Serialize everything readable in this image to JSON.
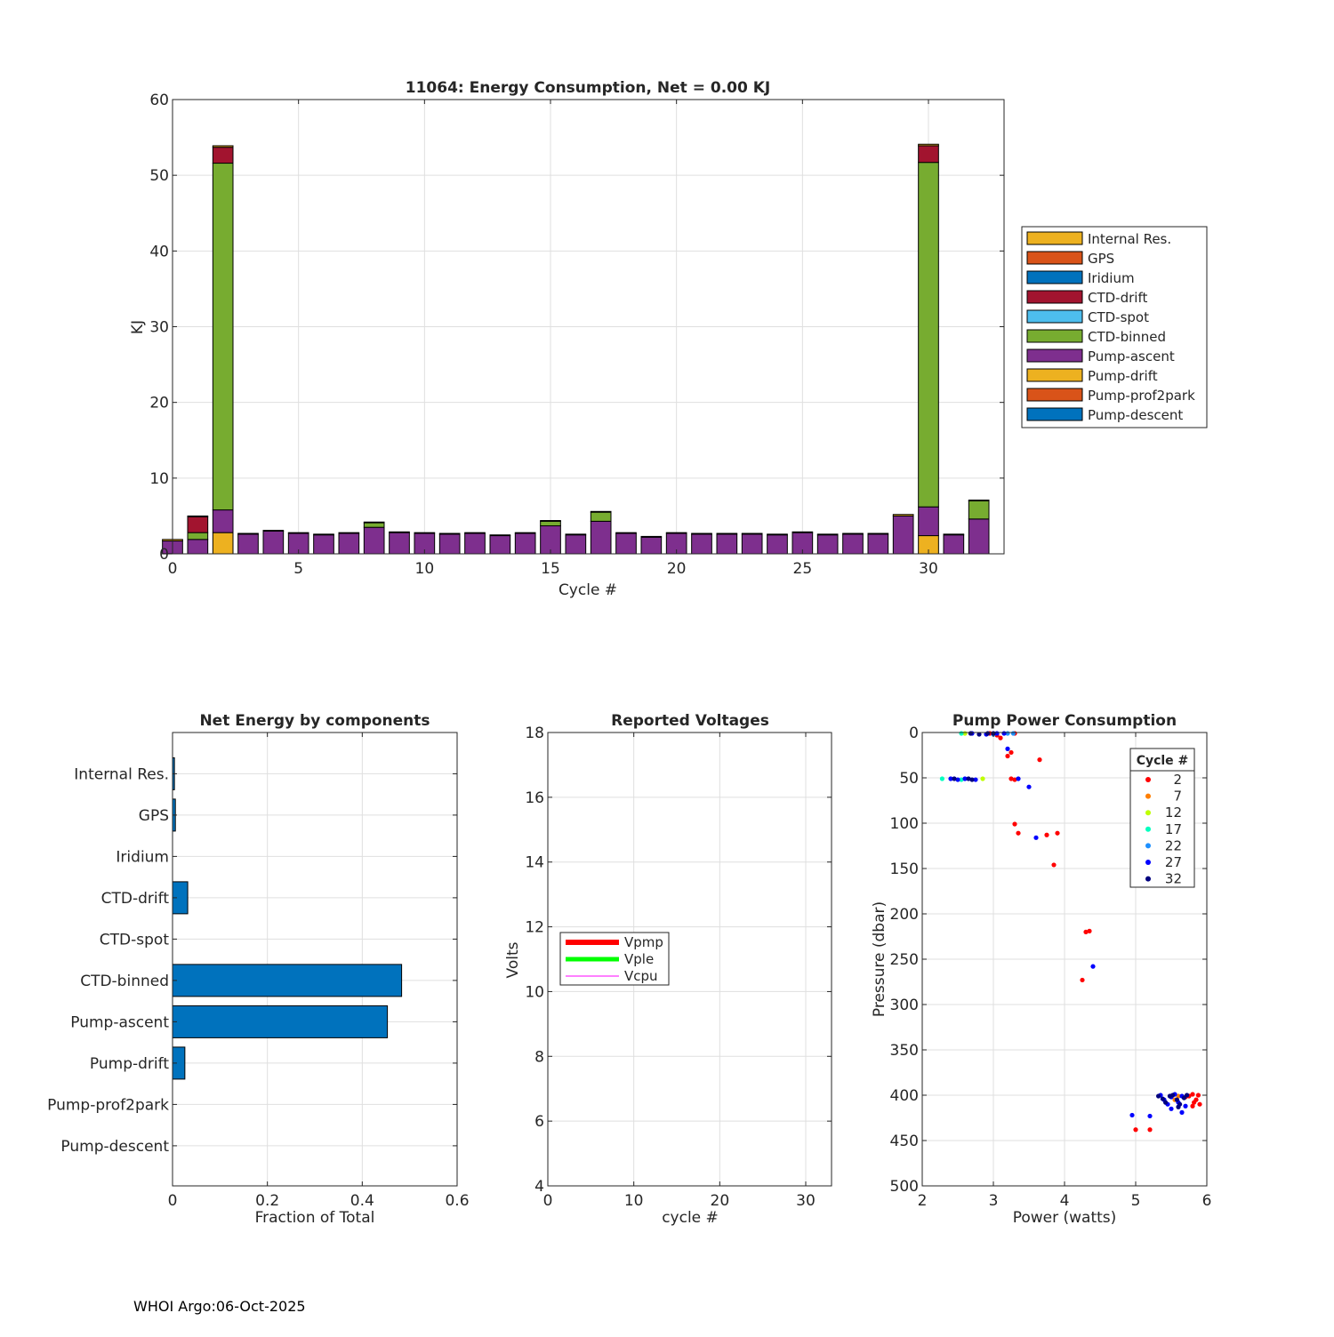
{
  "footer": "WHOI Argo:06-Oct-2025",
  "colors": {
    "internal_res": "#EDB120",
    "gps": "#D95319",
    "iridium": "#0072BD",
    "ctd_drift": "#A2142F",
    "ctd_spot": "#4DBEEE",
    "ctd_binned": "#77AC30",
    "pump_ascent": "#7E2F8E",
    "pump_drift": "#EDB120",
    "pump_prof2park": "#D95319",
    "pump_descent": "#0072BD",
    "bar_blue": "#0072BD"
  },
  "chart_data": [
    {
      "id": "energy",
      "type": "bar",
      "stacked": true,
      "title": "11064: Energy Consumption,  Net =   0.00 KJ",
      "xlabel": "Cycle #",
      "ylabel": "KJ",
      "xlim": [
        0,
        33
      ],
      "ylim": [
        0,
        60
      ],
      "xticks": [
        0,
        5,
        10,
        15,
        20,
        25,
        30
      ],
      "yticks": [
        0,
        10,
        20,
        30,
        40,
        50,
        60
      ],
      "grid": true,
      "legend_position": "outside-right",
      "legend": [
        "Internal Res.",
        "GPS",
        "Iridium",
        "CTD-drift",
        "CTD-spot",
        "CTD-binned",
        "Pump-ascent",
        "Pump-drift",
        "Pump-prof2park",
        "Pump-descent"
      ],
      "legend_colors": [
        "#EDB120",
        "#D95319",
        "#0072BD",
        "#A2142F",
        "#4DBEEE",
        "#77AC30",
        "#7E2F8E",
        "#EDB120",
        "#D95319",
        "#0072BD"
      ],
      "stack_order": [
        "Pump-drift",
        "Pump-ascent",
        "CTD-binned",
        "CTD-drift",
        "Internal Res."
      ],
      "stack_colors": [
        "#EDB120",
        "#7E2F8E",
        "#77AC30",
        "#A2142F",
        "#EDB120"
      ],
      "bars": [
        {
          "cycle": 0,
          "values": [
            0,
            1.7,
            0,
            0,
            0.2
          ]
        },
        {
          "cycle": 1,
          "values": [
            0,
            1.9,
            0.9,
            2.1,
            0.1
          ]
        },
        {
          "cycle": 2,
          "values": [
            2.8,
            3.0,
            45.8,
            2.1,
            0.2
          ]
        },
        {
          "cycle": 3,
          "values": [
            0,
            2.6,
            0,
            0,
            0.1
          ]
        },
        {
          "cycle": 4,
          "values": [
            0,
            3.0,
            0,
            0,
            0.1
          ]
        },
        {
          "cycle": 5,
          "values": [
            0,
            2.7,
            0,
            0,
            0.1
          ]
        },
        {
          "cycle": 6,
          "values": [
            0,
            2.5,
            0,
            0,
            0.1
          ]
        },
        {
          "cycle": 7,
          "values": [
            0,
            2.7,
            0,
            0,
            0.1
          ]
        },
        {
          "cycle": 8,
          "values": [
            0,
            3.5,
            0.6,
            0,
            0.1
          ]
        },
        {
          "cycle": 9,
          "values": [
            0,
            2.8,
            0,
            0,
            0.1
          ]
        },
        {
          "cycle": 10,
          "values": [
            0,
            2.7,
            0,
            0,
            0.1
          ]
        },
        {
          "cycle": 11,
          "values": [
            0,
            2.6,
            0,
            0,
            0.1
          ]
        },
        {
          "cycle": 12,
          "values": [
            0,
            2.7,
            0,
            0,
            0.1
          ]
        },
        {
          "cycle": 13,
          "values": [
            0,
            2.4,
            0,
            0,
            0.1
          ]
        },
        {
          "cycle": 14,
          "values": [
            0,
            2.7,
            0,
            0,
            0.1
          ]
        },
        {
          "cycle": 15,
          "values": [
            0,
            3.7,
            0.6,
            0,
            0.1
          ]
        },
        {
          "cycle": 16,
          "values": [
            0,
            2.5,
            0,
            0,
            0.1
          ]
        },
        {
          "cycle": 17,
          "values": [
            0,
            4.3,
            1.2,
            0,
            0.1
          ]
        },
        {
          "cycle": 18,
          "values": [
            0,
            2.7,
            0,
            0,
            0.1
          ]
        },
        {
          "cycle": 19,
          "values": [
            0,
            2.2,
            0,
            0,
            0.1
          ]
        },
        {
          "cycle": 20,
          "values": [
            0,
            2.7,
            0,
            0,
            0.1
          ]
        },
        {
          "cycle": 21,
          "values": [
            0,
            2.6,
            0,
            0,
            0.1
          ]
        },
        {
          "cycle": 22,
          "values": [
            0,
            2.6,
            0,
            0,
            0.1
          ]
        },
        {
          "cycle": 23,
          "values": [
            0,
            2.6,
            0,
            0,
            0.1
          ]
        },
        {
          "cycle": 24,
          "values": [
            0,
            2.5,
            0,
            0,
            0.1
          ]
        },
        {
          "cycle": 25,
          "values": [
            0,
            2.8,
            0,
            0,
            0.1
          ]
        },
        {
          "cycle": 26,
          "values": [
            0,
            2.5,
            0,
            0,
            0.1
          ]
        },
        {
          "cycle": 27,
          "values": [
            0,
            2.6,
            0,
            0,
            0.1
          ]
        },
        {
          "cycle": 28,
          "values": [
            0,
            2.6,
            0,
            0,
            0.1
          ]
        },
        {
          "cycle": 29,
          "values": [
            0,
            5.0,
            0,
            0,
            0.2
          ]
        },
        {
          "cycle": 30,
          "values": [
            2.4,
            3.8,
            45.5,
            2.2,
            0.2
          ]
        },
        {
          "cycle": 31,
          "values": [
            0,
            2.5,
            0,
            0,
            0.1
          ]
        },
        {
          "cycle": 32,
          "values": [
            0,
            4.6,
            2.4,
            0,
            0.1
          ]
        }
      ]
    },
    {
      "id": "components",
      "type": "bar",
      "orientation": "horizontal",
      "title": "Net Energy by components",
      "xlabel": "Fraction of Total",
      "ylabel": "",
      "xlim": [
        0,
        0.6
      ],
      "xticks": [
        0,
        0.2,
        0.4,
        0.6
      ],
      "xtick_labels": [
        "0",
        "0.2",
        "0.4",
        "0.6"
      ],
      "grid": true,
      "categories": [
        "Internal Res.",
        "GPS",
        "Iridium",
        "CTD-drift",
        "CTD-spot",
        "CTD-binned",
        "Pump-ascent",
        "Pump-drift",
        "Pump-prof2park",
        "Pump-descent"
      ],
      "values": [
        0.004,
        0.006,
        0,
        0.032,
        0,
        0.483,
        0.453,
        0.026,
        0,
        0
      ]
    },
    {
      "id": "voltages",
      "type": "line",
      "title": "Reported Voltages",
      "xlabel": "cycle #",
      "ylabel": "Volts",
      "xlim": [
        0,
        33
      ],
      "ylim": [
        4,
        18
      ],
      "xticks": [
        0,
        10,
        20,
        30
      ],
      "yticks": [
        4,
        6,
        8,
        10,
        12,
        14,
        16,
        18
      ],
      "grid": true,
      "legend_position": "left-middle",
      "series": [
        {
          "name": "Vpmp",
          "color": "#FF0000",
          "values": []
        },
        {
          "name": "Vple",
          "color": "#00FF00",
          "values": []
        },
        {
          "name": "Vcpu",
          "color": "#FF00FF",
          "values": []
        }
      ]
    },
    {
      "id": "pump",
      "type": "scatter",
      "title": "Pump Power Consumption",
      "xlabel": "Power (watts)",
      "ylabel": "Pressure (dbar)",
      "xlim": [
        2,
        6
      ],
      "ylim": [
        0,
        500
      ],
      "y_reversed": true,
      "xticks": [
        2,
        3,
        4,
        5,
        6
      ],
      "yticks": [
        0,
        50,
        100,
        150,
        200,
        250,
        300,
        350,
        400,
        450,
        500
      ],
      "grid": true,
      "legend_title": "Cycle #",
      "legend_position": "top-right",
      "legend": [
        "2",
        "7",
        "12",
        "17",
        "22",
        "27",
        "32"
      ],
      "legend_colors": [
        "#FF0000",
        "#FF7F00",
        "#BFFF00",
        "#00FFBF",
        "#1E90FF",
        "#0000FF",
        "#00007F"
      ],
      "series": [
        {
          "name": "2",
          "color": "#FF0000",
          "points": [
            [
              2.95,
              1
            ],
            [
              3.05,
              3
            ],
            [
              3.3,
              1
            ],
            [
              3.1,
              6
            ],
            [
              3.25,
              22
            ],
            [
              3.2,
              26
            ],
            [
              3.65,
              30
            ],
            [
              3.25,
              51
            ],
            [
              3.3,
              52
            ],
            [
              3.3,
              101
            ],
            [
              3.35,
              111
            ],
            [
              3.75,
              113
            ],
            [
              3.9,
              111
            ],
            [
              3.85,
              146
            ],
            [
              4.3,
              220
            ],
            [
              4.35,
              219
            ],
            [
              4.25,
              273
            ],
            [
              5.75,
              401
            ],
            [
              5.8,
              399
            ],
            [
              5.85,
              405
            ],
            [
              5.9,
              410
            ],
            [
              5.8,
              412
            ],
            [
              5.7,
              402
            ],
            [
              5.88,
              400
            ],
            [
              5.82,
              408
            ],
            [
              5.0,
              438
            ],
            [
              5.2,
              438
            ]
          ]
        },
        {
          "name": "7",
          "color": "#FF7F00",
          "points": [
            [
              5.55,
              405
            ],
            [
              5.6,
              401
            ]
          ]
        },
        {
          "name": "12",
          "color": "#BFFF00",
          "points": [
            [
              2.6,
              1
            ],
            [
              2.85,
              51
            ]
          ]
        },
        {
          "name": "17",
          "color": "#00FFBF",
          "points": [
            [
              2.55,
              1
            ],
            [
              2.28,
              51
            ],
            [
              2.55,
              52
            ]
          ]
        },
        {
          "name": "22",
          "color": "#1E90FF",
          "points": [
            [
              3.2,
              1
            ],
            [
              3.28,
              1
            ],
            [
              3.0,
              2
            ]
          ]
        },
        {
          "name": "27",
          "color": "#0000FF",
          "points": [
            [
              2.7,
              1
            ],
            [
              2.9,
              2
            ],
            [
              3.05,
              1
            ],
            [
              3.15,
              1
            ],
            [
              2.4,
              51
            ],
            [
              2.5,
              52
            ],
            [
              2.6,
              51
            ],
            [
              2.75,
              52
            ],
            [
              3.2,
              18
            ],
            [
              3.35,
              51
            ],
            [
              3.5,
              60
            ],
            [
              3.6,
              116
            ],
            [
              4.4,
              258
            ],
            [
              4.95,
              422
            ],
            [
              5.2,
              423
            ],
            [
              5.35,
              400
            ],
            [
              5.4,
              405
            ],
            [
              5.45,
              410
            ],
            [
              5.5,
              402
            ],
            [
              5.55,
              399
            ],
            [
              5.6,
              408
            ],
            [
              5.65,
              401
            ],
            [
              5.7,
              412
            ],
            [
              5.65,
              419
            ],
            [
              5.5,
              415
            ]
          ]
        },
        {
          "name": "32",
          "color": "#00007F",
          "points": [
            [
              2.68,
              1
            ],
            [
              2.8,
              2
            ],
            [
              2.92,
              1
            ],
            [
              3.0,
              1
            ],
            [
              2.45,
              51
            ],
            [
              2.65,
              51
            ],
            [
              2.7,
              52
            ],
            [
              5.32,
              401
            ],
            [
              5.38,
              404
            ],
            [
              5.42,
              408
            ],
            [
              5.48,
              401
            ],
            [
              5.52,
              400
            ],
            [
              5.58,
              405
            ],
            [
              5.62,
              410
            ],
            [
              5.68,
              403
            ],
            [
              5.72,
              400
            ],
            [
              5.6,
              413
            ]
          ]
        }
      ]
    }
  ]
}
